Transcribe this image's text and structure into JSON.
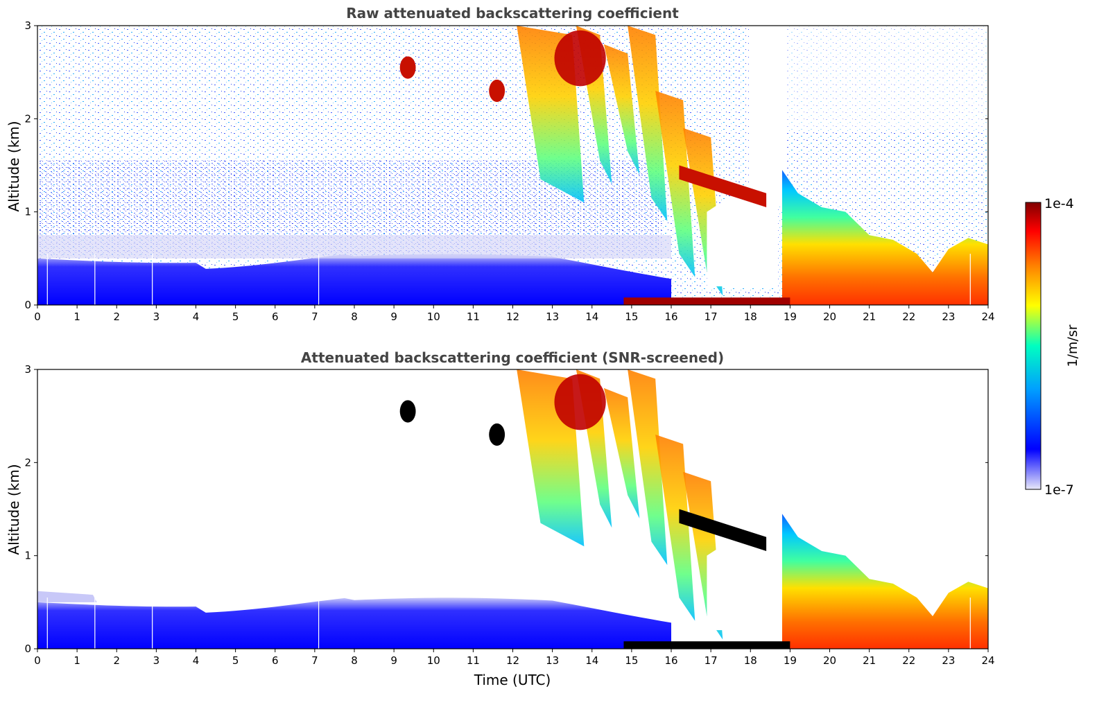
{
  "chart_data": [
    {
      "type": "heatmap",
      "title": "Raw attenuated backscattering coefficient",
      "xlabel": "",
      "ylabel": "Altitude (km)",
      "xlim": [
        0,
        24
      ],
      "ylim": [
        0,
        3
      ],
      "xticks": [
        0,
        1,
        2,
        3,
        4,
        5,
        6,
        7,
        8,
        9,
        10,
        11,
        12,
        13,
        14,
        15,
        16,
        17,
        18,
        19,
        20,
        21,
        22,
        23,
        24
      ],
      "yticks": [
        0,
        1,
        2,
        3
      ],
      "screened": false
    },
    {
      "type": "heatmap",
      "title": "Attenuated backscattering coefficient (SNR-screened)",
      "xlabel": "Time (UTC)",
      "ylabel": "Altitude (km)",
      "xlim": [
        0,
        24
      ],
      "ylim": [
        0,
        3
      ],
      "xticks": [
        0,
        1,
        2,
        3,
        4,
        5,
        6,
        7,
        8,
        9,
        10,
        11,
        12,
        13,
        14,
        15,
        16,
        17,
        18,
        19,
        20,
        21,
        22,
        23,
        24
      ],
      "yticks": [
        0,
        1,
        2,
        3
      ],
      "screened": true
    }
  ],
  "colorbar": {
    "label": "1/m/sr",
    "max_label": "1e-4",
    "min_label": "1e-7",
    "vmin": 1e-07,
    "vmax": 0.0001,
    "scale": "log",
    "colormap": [
      "#e8e8f8",
      "#0000ff",
      "#00a0ff",
      "#00ffc0",
      "#ffff00",
      "#ff8000",
      "#ff0000",
      "#800000"
    ]
  },
  "features": {
    "boundary_layer": {
      "top_km": 0.5,
      "t_start": 0,
      "t_end": 16
    },
    "dropout_lines_utc": [
      0.25,
      1.45,
      2.9,
      7.1,
      23.55
    ],
    "cloud_blobs": [
      {
        "name": "cloud-9.3h",
        "t": 9.35,
        "h_km": 2.55
      },
      {
        "name": "cloud-11.6h",
        "t": 11.6,
        "h_km": 2.3
      },
      {
        "name": "cloud-13.7h",
        "t": 13.7,
        "h_km": 2.65
      },
      {
        "name": "inclined-layer",
        "t_start": 16.2,
        "h_start_km": 1.5,
        "t_end": 18.4,
        "h_end_km": 1.2
      }
    ]
  }
}
